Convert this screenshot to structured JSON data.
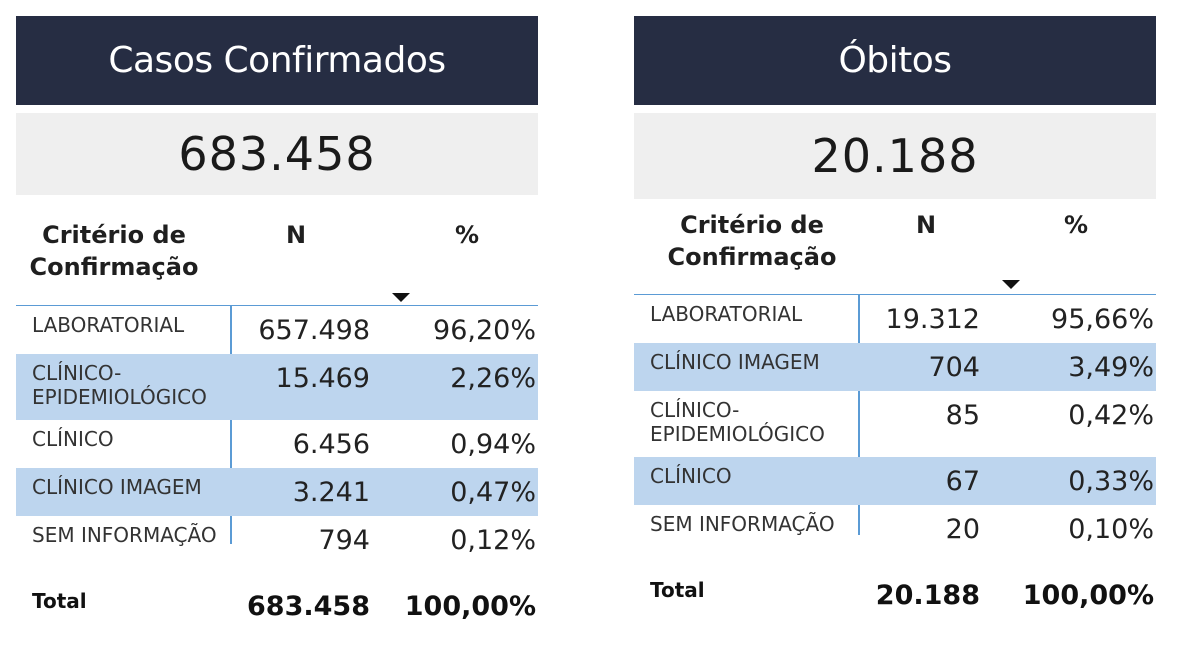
{
  "left": {
    "title": "Casos Confirmados",
    "kpi": "683.458",
    "headers": {
      "criterio": "Critério de Confirmação",
      "n": "N",
      "pct": "%"
    },
    "rows": [
      {
        "label": "LABORATORIAL",
        "n": "657.498",
        "pct": "96,20%"
      },
      {
        "label": "CLÍNICO-EPIDEMIOLÓGICO",
        "n": "15.469",
        "pct": "2,26%"
      },
      {
        "label": "CLÍNICO",
        "n": "6.456",
        "pct": "0,94%"
      },
      {
        "label": "CLÍNICO IMAGEM",
        "n": "3.241",
        "pct": "0,47%"
      },
      {
        "label": "SEM INFORMAÇÃO",
        "n": "794",
        "pct": "0,12%"
      }
    ],
    "total": {
      "label": "Total",
      "n": "683.458",
      "pct": "100,00%"
    }
  },
  "right": {
    "title": "Óbitos",
    "kpi": "20.188",
    "headers": {
      "criterio": "Critério de Confirmação",
      "n": "N",
      "pct": "%"
    },
    "rows": [
      {
        "label": "LABORATORIAL",
        "n": "19.312",
        "pct": "95,66%"
      },
      {
        "label": "CLÍNICO IMAGEM",
        "n": "704",
        "pct": "3,49%"
      },
      {
        "label": "CLÍNICO-EPIDEMIOLÓGICO",
        "n": "85",
        "pct": "0,42%"
      },
      {
        "label": "CLÍNICO",
        "n": "67",
        "pct": "0,33%"
      },
      {
        "label": "SEM INFORMAÇÃO",
        "n": "20",
        "pct": "0,10%"
      }
    ],
    "total": {
      "label": "Total",
      "n": "20.188",
      "pct": "100,00%"
    }
  }
}
